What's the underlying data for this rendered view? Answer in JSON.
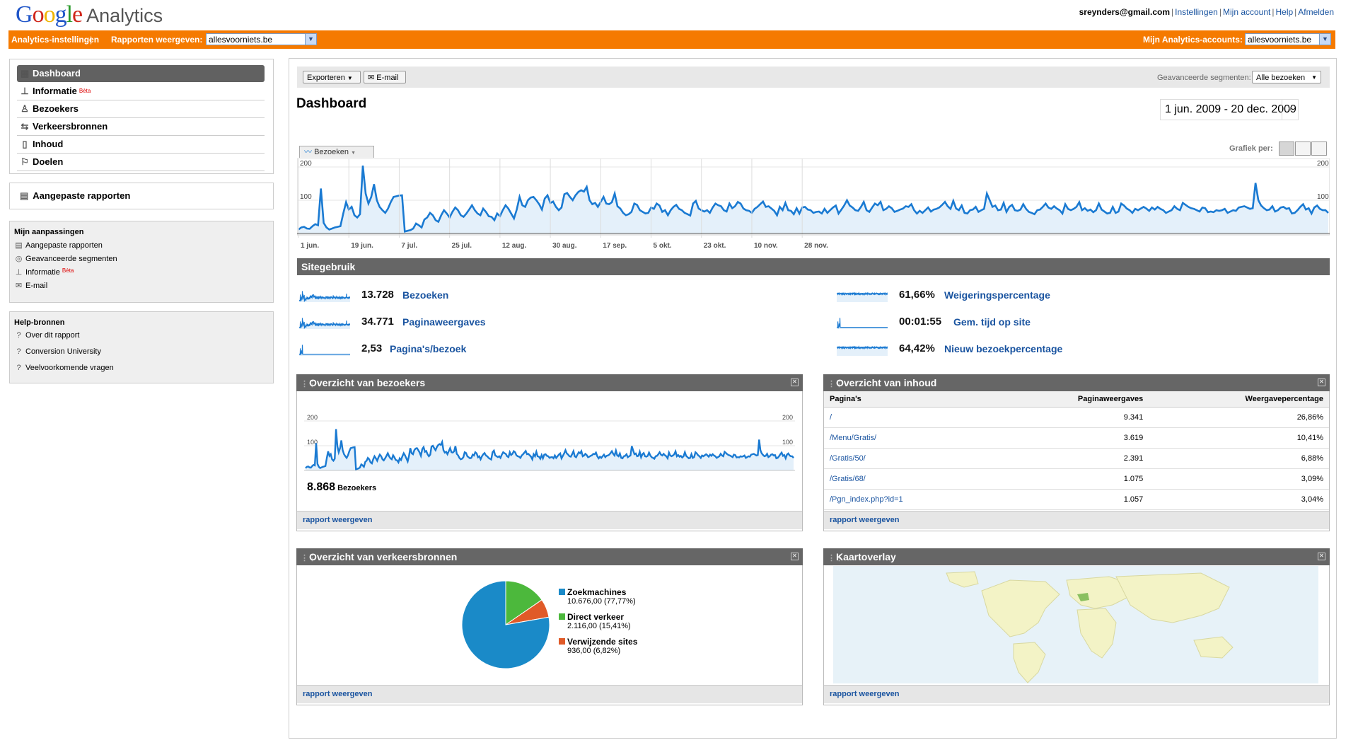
{
  "header": {
    "logo_google": "Google",
    "logo_analytics": "Analytics",
    "links": [
      "sreynders@gmail.com",
      "Instellingen",
      "Mijn account",
      "Help",
      "Afmelden"
    ]
  },
  "orange_bar": {
    "settings": "Analytics-instellingen",
    "reports_label": "Rapporten weergeven:",
    "reports_value": "allesvoorniets.be",
    "accounts_label": "Mijn Analytics-accounts:",
    "accounts_value": "allesvoorniets.be"
  },
  "nav": {
    "items": [
      {
        "label": "Dashboard",
        "icon": "dashboard-icon"
      },
      {
        "label": "Informatie",
        "icon": "chart-icon",
        "badge": "Bèta"
      },
      {
        "label": "Bezoekers",
        "icon": "person-icon"
      },
      {
        "label": "Verkeersbronnen",
        "icon": "traffic-icon"
      },
      {
        "label": "Inhoud",
        "icon": "page-icon"
      },
      {
        "label": "Doelen",
        "icon": "flag-icon"
      }
    ],
    "custom_reports": "Aangepaste rapporten"
  },
  "customizations": {
    "title": "Mijn aanpassingen",
    "items": [
      {
        "label": "Aangepaste rapporten",
        "icon": "report-icon"
      },
      {
        "label": "Geavanceerde segmenten",
        "icon": "segment-icon"
      },
      {
        "label": "Informatie",
        "icon": "chart-icon",
        "badge": "Bèta"
      },
      {
        "label": "E-mail",
        "icon": "mail-icon"
      }
    ]
  },
  "help": {
    "title": "Help-bronnen",
    "items": [
      "Over dit rapport",
      "Conversion University",
      "Veelvoorkomende vragen"
    ]
  },
  "toolbar": {
    "export": "Exporteren",
    "email": "E-mail",
    "segments_label": "Geavanceerde segmenten:",
    "segments_value": "Alle bezoeken"
  },
  "page": {
    "title": "Dashboard",
    "date_range": "1 jun. 2009 - 20 dec. 2009",
    "chart_tab": "Bezoeken",
    "graph_per": "Grafiek per:"
  },
  "chart_data": [
    {
      "type": "area",
      "title": "",
      "series": [
        {
          "name": "Bezoeken",
          "values": [
            12,
            18,
            20,
            15,
            14,
            22,
            28,
            25,
            135,
            32,
            18,
            12,
            15,
            18,
            20,
            22,
            60,
            94,
            72,
            80,
            55,
            48,
            58,
            204,
            120,
            90,
            110,
            148,
            100,
            80,
            70,
            62,
            75,
            95,
            110,
            112,
            114,
            115,
            6,
            8,
            10,
            15,
            30,
            25,
            18,
            42,
            48,
            62,
            55,
            40,
            35,
            55,
            70,
            60,
            48,
            65,
            78,
            70,
            55,
            50,
            60,
            72,
            85,
            70,
            60,
            55,
            75,
            65,
            52,
            50,
            40,
            60,
            52,
            70,
            85,
            75,
            60,
            45,
            72,
            110,
            85,
            80,
            100,
            108,
            110,
            100,
            88,
            72,
            105,
            115,
            92,
            96,
            80,
            70,
            78,
            118,
            122,
            110,
            100,
            115,
            125,
            130,
            126,
            140,
            100,
            88,
            92,
            80,
            95,
            110,
            90,
            88,
            94,
            120,
            82,
            75,
            62,
            55,
            58,
            65,
            90,
            86,
            70,
            65,
            60,
            62,
            78,
            74,
            90,
            84,
            65,
            70,
            55,
            70,
            80,
            86,
            74,
            70,
            62,
            58,
            54,
            90,
            98,
            75,
            70,
            66,
            70,
            62,
            78,
            90,
            85,
            82,
            70,
            66,
            90,
            76,
            82,
            95,
            90,
            75,
            70,
            68,
            62,
            74,
            80,
            88,
            96,
            80,
            82,
            75,
            68,
            55,
            80,
            70,
            92,
            70,
            68,
            58,
            76,
            60,
            78,
            80,
            72,
            70,
            62,
            65,
            66,
            60,
            74,
            62,
            70,
            78,
            84,
            60,
            72,
            84,
            100,
            84,
            78,
            70,
            68,
            80,
            95,
            70,
            65,
            78,
            90,
            85,
            95,
            70,
            74,
            82,
            76,
            65,
            68,
            72,
            75,
            82,
            80,
            88,
            70,
            60,
            68,
            62,
            70,
            78,
            66,
            72,
            74,
            78,
            86,
            95,
            82,
            74,
            98,
            75,
            70,
            84,
            62,
            60,
            70,
            72,
            80,
            65,
            70,
            74,
            120,
            100,
            80,
            84,
            70,
            72,
            92,
            65,
            80,
            86,
            70,
            68,
            72,
            88,
            74,
            65,
            62,
            58,
            70,
            72,
            80,
            90,
            78,
            74,
            82,
            75,
            70,
            60,
            88,
            74,
            70,
            74,
            80,
            94,
            70,
            76,
            68,
            72,
            64,
            70,
            90,
            72,
            66,
            60,
            62,
            80,
            62,
            66,
            90,
            84,
            75,
            70,
            62,
            74,
            70,
            75,
            80,
            75,
            68,
            78,
            72,
            80,
            74,
            70,
            62,
            66,
            70,
            82,
            74,
            70,
            92,
            86,
            80,
            76,
            74,
            70,
            66,
            78,
            76,
            64,
            66,
            64,
            70,
            68,
            70,
            74,
            62,
            66,
            70,
            68,
            78,
            80,
            82,
            78,
            74,
            76,
            152,
            100,
            84,
            76,
            70,
            72,
            82,
            66,
            70,
            78,
            80,
            74,
            76,
            60,
            62,
            70,
            80,
            88,
            72,
            76,
            60,
            78,
            84,
            74,
            70,
            70,
            62
          ]
        }
      ],
      "x_ticks": [
        "1 jun.",
        "19 jun.",
        "7 jul.",
        "25 jul.",
        "12 aug.",
        "30 aug.",
        "17 sep.",
        "5 okt.",
        "23 okt.",
        "10 nov.",
        "28 nov."
      ],
      "y_ticks": [
        "100",
        "200"
      ],
      "ylim": [
        0,
        200
      ],
      "color": "#1a7ad2"
    }
  ],
  "site_usage": {
    "title": "Sitegebruik",
    "metrics": [
      {
        "value": "13.728",
        "label": "Bezoeken"
      },
      {
        "value": "34.771",
        "label": "Paginaweergaves"
      },
      {
        "value": "2,53",
        "label": "Pagina's/bezoek"
      },
      {
        "value": "61,66%",
        "label": "Weigeringspercentage"
      },
      {
        "value": "00:01:55",
        "label": "Gem. tijd op site"
      },
      {
        "value": "64,42%",
        "label": "Nieuw bezoekpercentage"
      }
    ]
  },
  "visitors_panel": {
    "title": "Overzicht van bezoekers",
    "total": "8.868",
    "total_label": "Bezoekers",
    "y_ticks": [
      "100",
      "200"
    ],
    "footer": "rapport weergeven"
  },
  "content_panel": {
    "title": "Overzicht van inhoud",
    "columns": [
      "Pagina's",
      "Paginaweergaves",
      "Weergavepercentage"
    ],
    "rows": [
      [
        "/",
        "9.341",
        "26,86%"
      ],
      [
        "/Menu/Gratis/",
        "3.619",
        "10,41%"
      ],
      [
        "/Gratis/50/",
        "2.391",
        "6,88%"
      ],
      [
        "/Gratis/68/",
        "1.075",
        "3,09%"
      ],
      [
        "/Pgn_index.php?id=1",
        "1.057",
        "3,04%"
      ]
    ],
    "footer": "rapport weergeven"
  },
  "traffic_panel": {
    "title": "Overzicht van verkeersbronnen",
    "slices": [
      {
        "name": "Zoekmachines",
        "detail": "10.676,00 (77,77%)",
        "pct": 77.77,
        "color": "#1a8ac8"
      },
      {
        "name": "Direct verkeer",
        "detail": "2.116,00 (15,41%)",
        "pct": 15.41,
        "color": "#4cb83c"
      },
      {
        "name": "Verwijzende sites",
        "detail": "936,00 (6,82%)",
        "pct": 6.82,
        "color": "#e05a28"
      }
    ],
    "footer": "rapport weergeven"
  },
  "map_panel": {
    "title": "Kaartoverlay",
    "footer": "rapport weergeven"
  }
}
